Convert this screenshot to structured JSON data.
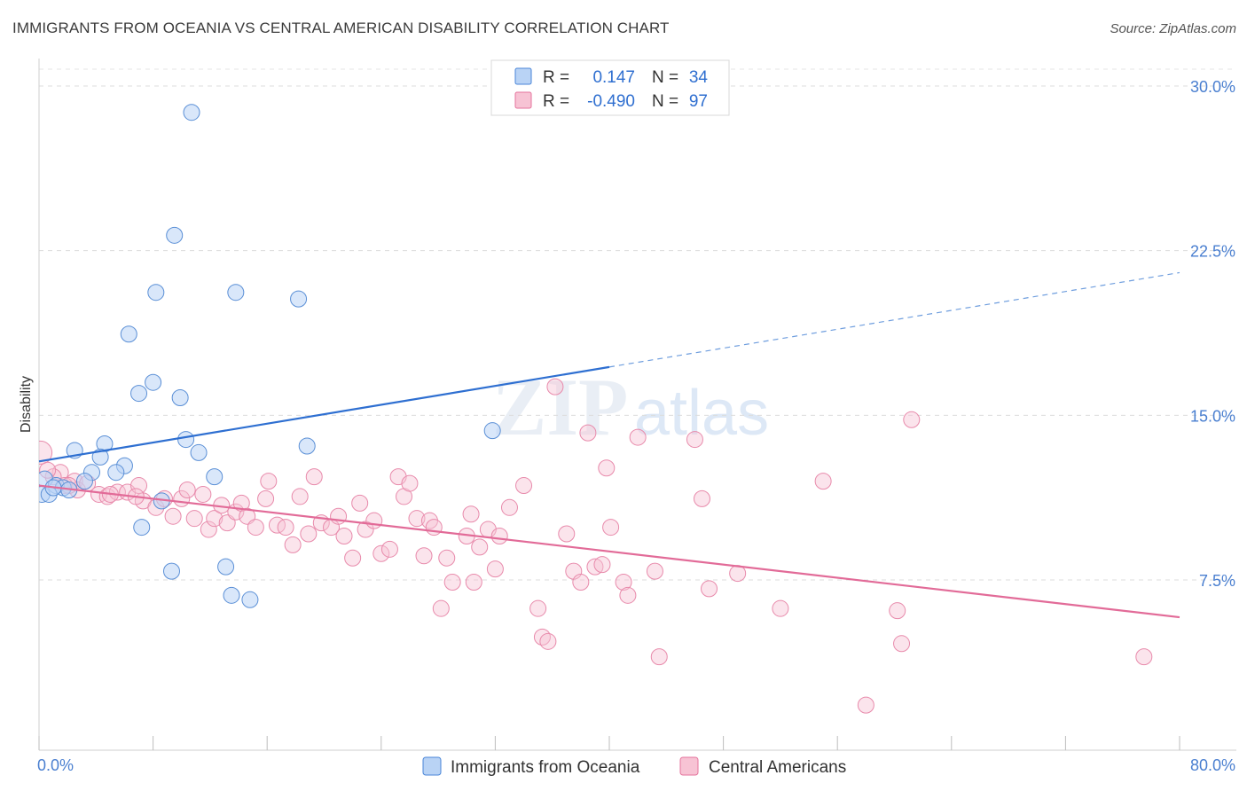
{
  "title": "IMMIGRANTS FROM OCEANIA VS CENTRAL AMERICAN DISABILITY CORRELATION CHART",
  "source": "Source: ZipAtlas.com",
  "watermark": {
    "zip": "ZIP",
    "atlas": "atlas"
  },
  "colors": {
    "blue": "#4a86d8",
    "blue_fill": "#b9d3f5",
    "pink": "#e5739c",
    "pink_fill": "#f7c3d4",
    "tick": "#4a7fd0"
  },
  "legend": {
    "r_label": "R =",
    "n_label": "N =",
    "series1": {
      "r": "0.147",
      "n": "34"
    },
    "series2": {
      "r": "-0.490",
      "n": "97"
    }
  },
  "bottom_legend": [
    "Immigrants from Oceania",
    "Central Americans"
  ],
  "chart_data": {
    "type": "scatter",
    "xlabel": "",
    "ylabel": "Disability",
    "xlim": [
      0,
      80
    ],
    "ylim": [
      0,
      31.5
    ],
    "x_tick_labels": [
      "0.0%",
      "80.0%"
    ],
    "y_ticks": [
      7.5,
      15.0,
      22.5,
      30.0
    ],
    "y_tick_labels": [
      "7.5%",
      "15.0%",
      "22.5%",
      "30.0%"
    ],
    "grid": "horizontal dashed",
    "legend_position": "top-center",
    "series": [
      {
        "name": "Immigrants from Oceania",
        "trend": {
          "x": [
            0,
            40
          ],
          "y": [
            12.9,
            17.2
          ],
          "dashed_extension_to": [
            80,
            21.5
          ]
        },
        "points": [
          [
            10.7,
            28.8
          ],
          [
            9.5,
            23.2
          ],
          [
            8.2,
            20.6
          ],
          [
            13.8,
            20.6
          ],
          [
            18.2,
            20.3
          ],
          [
            6.3,
            18.7
          ],
          [
            8.0,
            16.5
          ],
          [
            7.0,
            16.0
          ],
          [
            9.9,
            15.8
          ],
          [
            31.8,
            14.3
          ],
          [
            10.3,
            13.9
          ],
          [
            18.8,
            13.6
          ],
          [
            4.6,
            13.7
          ],
          [
            2.5,
            13.4
          ],
          [
            11.2,
            13.3
          ],
          [
            4.3,
            13.1
          ],
          [
            6.0,
            12.7
          ],
          [
            5.4,
            12.4
          ],
          [
            3.7,
            12.4
          ],
          [
            0.4,
            12.1
          ],
          [
            3.2,
            12.0
          ],
          [
            12.3,
            12.2
          ],
          [
            1.2,
            11.8
          ],
          [
            1.7,
            11.7
          ],
          [
            2.1,
            11.6
          ],
          [
            0.2,
            11.4
          ],
          [
            0.7,
            11.4
          ],
          [
            8.6,
            11.1
          ],
          [
            7.2,
            9.9
          ],
          [
            9.3,
            7.9
          ],
          [
            13.1,
            8.1
          ],
          [
            13.5,
            6.8
          ],
          [
            14.8,
            6.6
          ],
          [
            1.0,
            11.7
          ]
        ]
      },
      {
        "name": "Central Americans",
        "trend": {
          "x": [
            0,
            80
          ],
          "y": [
            11.8,
            5.8
          ]
        },
        "points": [
          [
            0.1,
            13.3
          ],
          [
            1.5,
            12.4
          ],
          [
            1.0,
            12.2
          ],
          [
            2.5,
            12.0
          ],
          [
            1.8,
            11.8
          ],
          [
            2.7,
            11.6
          ],
          [
            3.4,
            11.9
          ],
          [
            4.2,
            11.4
          ],
          [
            4.8,
            11.3
          ],
          [
            5.5,
            11.5
          ],
          [
            6.2,
            11.5
          ],
          [
            7.3,
            11.1
          ],
          [
            7.0,
            11.8
          ],
          [
            6.8,
            11.3
          ],
          [
            8.2,
            10.8
          ],
          [
            8.8,
            11.2
          ],
          [
            9.4,
            10.4
          ],
          [
            10.0,
            11.2
          ],
          [
            10.4,
            11.6
          ],
          [
            10.9,
            10.3
          ],
          [
            11.5,
            11.4
          ],
          [
            11.9,
            9.8
          ],
          [
            12.3,
            10.3
          ],
          [
            12.8,
            10.9
          ],
          [
            13.2,
            10.1
          ],
          [
            13.8,
            10.6
          ],
          [
            14.2,
            11.0
          ],
          [
            14.6,
            10.4
          ],
          [
            15.2,
            9.9
          ],
          [
            15.9,
            11.2
          ],
          [
            16.1,
            12.0
          ],
          [
            16.7,
            10.0
          ],
          [
            17.3,
            9.9
          ],
          [
            17.8,
            9.1
          ],
          [
            18.3,
            11.3
          ],
          [
            18.9,
            9.6
          ],
          [
            19.3,
            12.2
          ],
          [
            19.8,
            10.1
          ],
          [
            20.5,
            9.9
          ],
          [
            21.0,
            10.4
          ],
          [
            21.4,
            9.5
          ],
          [
            22.0,
            8.5
          ],
          [
            22.5,
            11.0
          ],
          [
            22.9,
            9.8
          ],
          [
            23.5,
            10.2
          ],
          [
            24.0,
            8.7
          ],
          [
            24.6,
            8.9
          ],
          [
            25.2,
            12.2
          ],
          [
            25.6,
            11.3
          ],
          [
            26.0,
            11.9
          ],
          [
            26.5,
            10.3
          ],
          [
            27.0,
            8.6
          ],
          [
            27.4,
            10.2
          ],
          [
            27.7,
            9.9
          ],
          [
            28.2,
            6.2
          ],
          [
            28.6,
            8.5
          ],
          [
            29.0,
            7.4
          ],
          [
            30.0,
            9.5
          ],
          [
            30.3,
            10.5
          ],
          [
            30.5,
            7.4
          ],
          [
            30.9,
            9.0
          ],
          [
            31.5,
            9.8
          ],
          [
            32.0,
            8.0
          ],
          [
            32.3,
            9.5
          ],
          [
            33.0,
            10.8
          ],
          [
            34.0,
            11.8
          ],
          [
            35.0,
            6.2
          ],
          [
            35.3,
            4.9
          ],
          [
            35.7,
            4.7
          ],
          [
            36.2,
            16.3
          ],
          [
            37.0,
            9.6
          ],
          [
            37.5,
            7.9
          ],
          [
            38.0,
            7.4
          ],
          [
            38.5,
            14.2
          ],
          [
            39.0,
            8.1
          ],
          [
            39.5,
            8.2
          ],
          [
            39.8,
            12.6
          ],
          [
            40.1,
            9.9
          ],
          [
            41.0,
            7.4
          ],
          [
            41.3,
            6.8
          ],
          [
            42.0,
            14.0
          ],
          [
            43.2,
            7.9
          ],
          [
            43.5,
            4.0
          ],
          [
            46.0,
            13.9
          ],
          [
            46.5,
            11.2
          ],
          [
            47.0,
            7.1
          ],
          [
            49.0,
            7.8
          ],
          [
            52.0,
            6.2
          ],
          [
            55.0,
            12.0
          ],
          [
            58.0,
            1.8
          ],
          [
            60.2,
            6.1
          ],
          [
            60.5,
            4.6
          ],
          [
            61.2,
            14.8
          ],
          [
            77.5,
            4.0
          ],
          [
            0.6,
            12.5
          ],
          [
            2.1,
            11.8
          ],
          [
            5.0,
            11.4
          ]
        ]
      }
    ]
  }
}
